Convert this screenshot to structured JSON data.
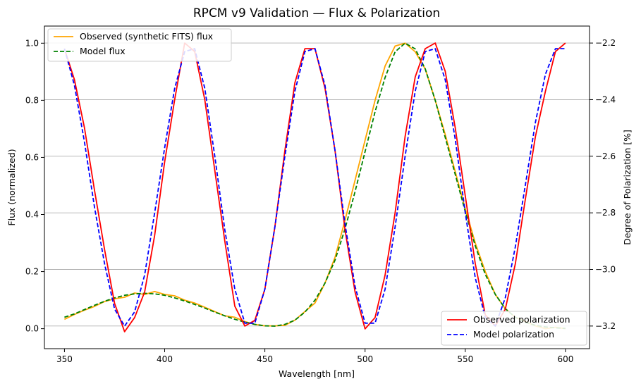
{
  "chart_data": {
    "type": "line",
    "title": "RPCM v9 Validation — Flux & Polarization",
    "xlabel": "Wavelength [nm]",
    "ylabel_left": "Flux (normalized)",
    "ylabel_right": "Degree of Polarization [%]",
    "xlim": [
      340,
      612
    ],
    "ylim_left": [
      -0.07,
      1.06
    ],
    "ylim_right": [
      -3.28,
      -2.14
    ],
    "xticks": [
      350,
      400,
      450,
      500,
      550,
      600
    ],
    "xtick_labels": [
      "350",
      "400",
      "450",
      "500",
      "550",
      "600"
    ],
    "yticks_left": [
      0.0,
      0.2,
      0.4,
      0.6,
      0.8,
      1.0
    ],
    "ytick_labels_left": [
      "0.0",
      "0.2",
      "0.4",
      "0.6",
      "0.8",
      "1.0"
    ],
    "yticks_right": [
      -3.2,
      -3.0,
      -2.8,
      -2.6,
      -2.4,
      -2.2
    ],
    "ytick_labels_right": [
      "−3.2",
      "−3.0",
      "−2.8",
      "−2.6",
      "−2.4",
      "−2.2"
    ],
    "grid": "horizontal lines at right-axis ticks",
    "legend_left": {
      "placement": "upper-left",
      "entries": [
        "Observed (synthetic FITS) flux",
        "Model flux"
      ]
    },
    "legend_right": {
      "placement": "lower-right",
      "entries": [
        "Observed polarization",
        "Model polarization"
      ]
    },
    "series": [
      {
        "name": "Observed (synthetic FITS) flux",
        "axis": "left",
        "color": "#ffa500",
        "style": "solid",
        "x": [
          350,
          355,
          360,
          365,
          370,
          375,
          380,
          385,
          390,
          395,
          400,
          405,
          410,
          415,
          420,
          425,
          430,
          435,
          440,
          445,
          450,
          455,
          460,
          465,
          470,
          475,
          480,
          485,
          490,
          495,
          500,
          505,
          510,
          515,
          520,
          525,
          530,
          535,
          540,
          545,
          550,
          555,
          560,
          565,
          570,
          575,
          580,
          585,
          590,
          595,
          600
        ],
        "values": [
          0.033,
          0.05,
          0.065,
          0.078,
          0.095,
          0.105,
          0.11,
          0.125,
          0.12,
          0.13,
          0.12,
          0.115,
          0.1,
          0.09,
          0.075,
          0.06,
          0.045,
          0.04,
          0.025,
          0.015,
          0.01,
          0.01,
          0.012,
          0.03,
          0.06,
          0.09,
          0.16,
          0.25,
          0.38,
          0.52,
          0.66,
          0.8,
          0.92,
          0.99,
          1.0,
          0.97,
          0.91,
          0.8,
          0.68,
          0.55,
          0.42,
          0.3,
          0.2,
          0.12,
          0.07,
          0.04,
          0.025,
          0.01,
          0.0,
          0.005,
          0.0
        ]
      },
      {
        "name": "Model flux",
        "axis": "left",
        "color": "#008000",
        "style": "dashed",
        "x": [
          350,
          355,
          360,
          365,
          370,
          375,
          380,
          385,
          390,
          395,
          400,
          405,
          410,
          415,
          420,
          425,
          430,
          435,
          440,
          445,
          450,
          455,
          460,
          465,
          470,
          475,
          480,
          485,
          490,
          495,
          500,
          505,
          510,
          515,
          520,
          525,
          530,
          535,
          540,
          545,
          550,
          555,
          560,
          565,
          570,
          575,
          580,
          585,
          590,
          595,
          600
        ],
        "values": [
          0.04,
          0.052,
          0.067,
          0.082,
          0.096,
          0.108,
          0.117,
          0.122,
          0.124,
          0.122,
          0.117,
          0.108,
          0.097,
          0.085,
          0.072,
          0.058,
          0.045,
          0.033,
          0.023,
          0.015,
          0.01,
          0.009,
          0.015,
          0.03,
          0.058,
          0.1,
          0.16,
          0.24,
          0.35,
          0.48,
          0.62,
          0.76,
          0.88,
          0.97,
          1.0,
          0.98,
          0.91,
          0.8,
          0.67,
          0.54,
          0.41,
          0.29,
          0.19,
          0.12,
          0.07,
          0.04,
          0.022,
          0.012,
          0.006,
          0.003,
          0.001
        ]
      },
      {
        "name": "Observed polarization",
        "axis": "right",
        "color": "#ff0000",
        "style": "solid",
        "x": [
          350,
          355,
          360,
          365,
          370,
          375,
          380,
          385,
          390,
          395,
          400,
          405,
          410,
          415,
          420,
          425,
          430,
          435,
          440,
          445,
          450,
          455,
          460,
          465,
          470,
          475,
          480,
          485,
          490,
          495,
          500,
          505,
          510,
          515,
          520,
          525,
          530,
          535,
          540,
          545,
          550,
          555,
          560,
          565,
          570,
          575,
          580,
          585,
          590,
          595,
          600
        ],
        "values": [
          -2.22,
          -2.33,
          -2.5,
          -2.72,
          -2.93,
          -3.12,
          -3.22,
          -3.17,
          -3.08,
          -2.88,
          -2.62,
          -2.4,
          -2.2,
          -2.23,
          -2.4,
          -2.65,
          -2.9,
          -3.13,
          -3.2,
          -3.18,
          -3.07,
          -2.85,
          -2.58,
          -2.34,
          -2.22,
          -2.22,
          -2.36,
          -2.58,
          -2.86,
          -3.08,
          -3.21,
          -3.17,
          -3.02,
          -2.8,
          -2.53,
          -2.32,
          -2.22,
          -2.2,
          -2.3,
          -2.5,
          -2.74,
          -2.98,
          -3.16,
          -3.2,
          -3.14,
          -2.98,
          -2.75,
          -2.53,
          -2.37,
          -2.23,
          -2.2
        ]
      },
      {
        "name": "Model polarization",
        "axis": "right",
        "color": "#0000ff",
        "style": "dashed",
        "x": [
          350,
          355,
          360,
          365,
          370,
          375,
          380,
          385,
          390,
          395,
          400,
          405,
          410,
          415,
          420,
          425,
          430,
          435,
          440,
          445,
          450,
          455,
          460,
          465,
          470,
          475,
          480,
          485,
          490,
          495,
          500,
          505,
          510,
          515,
          520,
          525,
          530,
          535,
          540,
          545,
          550,
          555,
          560,
          565,
          570,
          575,
          580,
          585,
          590,
          595,
          600
        ],
        "values": [
          -2.22,
          -2.35,
          -2.55,
          -2.78,
          -2.98,
          -3.14,
          -3.2,
          -3.15,
          -3.02,
          -2.8,
          -2.57,
          -2.36,
          -2.23,
          -2.22,
          -2.36,
          -2.6,
          -2.86,
          -3.07,
          -3.19,
          -3.19,
          -3.07,
          -2.85,
          -2.6,
          -2.37,
          -2.23,
          -2.22,
          -2.35,
          -2.58,
          -2.84,
          -3.06,
          -3.19,
          -3.19,
          -3.07,
          -2.85,
          -2.6,
          -2.37,
          -2.23,
          -2.22,
          -2.33,
          -2.54,
          -2.8,
          -3.03,
          -3.17,
          -3.2,
          -3.1,
          -2.92,
          -2.7,
          -2.48,
          -2.31,
          -2.22,
          -2.22
        ]
      }
    ]
  }
}
